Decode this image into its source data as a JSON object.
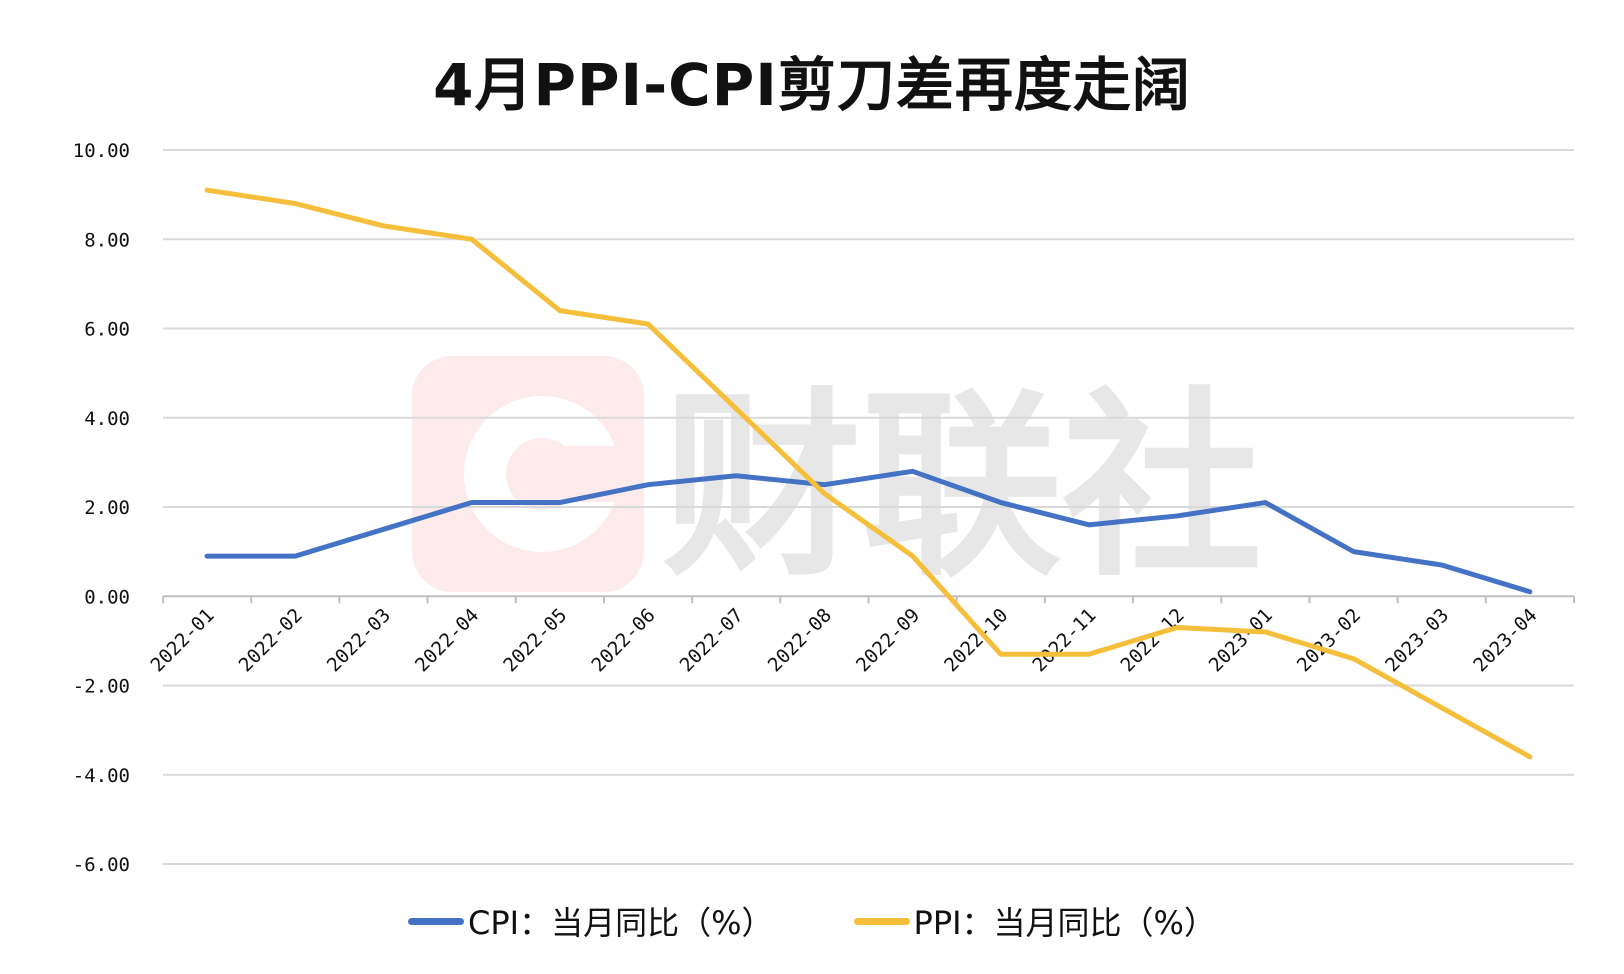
{
  "chart_data": {
    "type": "line",
    "title": "4月PPI-CPI剪刀差再度走阔",
    "categories": [
      "2022-01",
      "2022-02",
      "2022-03",
      "2022-04",
      "2022-05",
      "2022-06",
      "2022-07",
      "2022-08",
      "2022-09",
      "2022-10",
      "2022-11",
      "2022-12",
      "2023-01",
      "2023-02",
      "2023-03",
      "2023-04"
    ],
    "series": [
      {
        "name": "CPI：当月同比（%）",
        "color": "#4472C4",
        "values": [
          0.9,
          0.9,
          1.5,
          2.1,
          2.1,
          2.5,
          2.7,
          2.5,
          2.8,
          2.1,
          1.6,
          1.8,
          2.1,
          1.0,
          0.7,
          0.1
        ]
      },
      {
        "name": "PPI：当月同比（%）",
        "color": "#F5BF3C",
        "values": [
          9.1,
          8.8,
          8.3,
          8.0,
          6.4,
          6.1,
          4.2,
          2.3,
          0.9,
          -1.3,
          -1.3,
          -0.7,
          -0.8,
          -1.4,
          -2.5,
          -3.6
        ]
      }
    ],
    "ylim": [
      -6,
      10
    ],
    "yticks": [
      "10.00",
      "8.00",
      "6.00",
      "4.00",
      "2.00",
      "0.00",
      "-2.00",
      "-4.00",
      "-6.00"
    ],
    "xlabel": "",
    "ylabel": "",
    "grid": true,
    "legend": "bottom"
  },
  "watermark": "财联社"
}
